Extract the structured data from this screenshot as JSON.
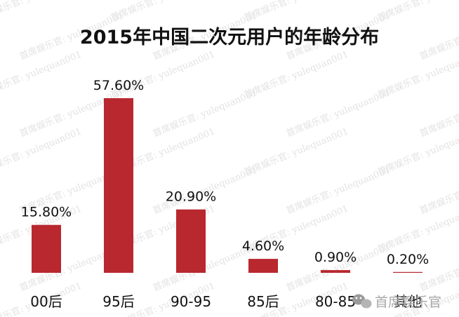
{
  "watermark": {
    "pattern": "首席娱乐官: yulequan001",
    "corner_text": "首席娱乐官"
  },
  "chart_data": {
    "type": "bar",
    "title": "2015年中国二次元用户的年龄分布",
    "categories": [
      "00后",
      "95后",
      "90-95",
      "85后",
      "80-85",
      "其他"
    ],
    "values": [
      15.8,
      57.6,
      20.9,
      4.6,
      0.9,
      0.2
    ],
    "data_labels": [
      "15.80%",
      "57.60%",
      "20.90%",
      "4.60%",
      "0.90%",
      "0.20%"
    ],
    "ylim": [
      0,
      57.6
    ],
    "xlabel": "",
    "ylabel": "",
    "grid": false,
    "legend": "none",
    "bar_color": "#b8282e"
  }
}
